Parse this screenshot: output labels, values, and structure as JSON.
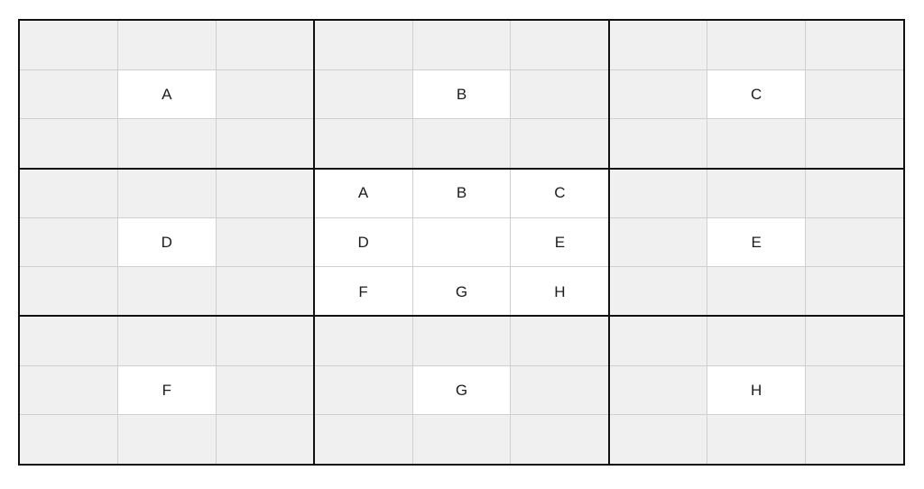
{
  "board": {
    "rows": 9,
    "cols": 9,
    "block_rows": 3,
    "block_cols": 3,
    "colors": {
      "page_bg": "#ffffff",
      "cell_default": "#f0f0f0",
      "cell_highlight": "#ffffff",
      "grid_line": "#cfcfcf",
      "block_line": "#111111",
      "label_text": "#1c1c1c"
    },
    "cells": [
      [
        "",
        "",
        "",
        "",
        "",
        "",
        "",
        "",
        ""
      ],
      [
        "",
        "A",
        "",
        "",
        "B",
        "",
        "",
        "C",
        ""
      ],
      [
        "",
        "",
        "",
        "",
        "",
        "",
        "",
        "",
        ""
      ],
      [
        "",
        "",
        "",
        "A",
        "B",
        "C",
        "",
        "",
        ""
      ],
      [
        "",
        "D",
        "",
        "D",
        "",
        "E",
        "",
        "E",
        ""
      ],
      [
        "",
        "",
        "",
        "F",
        "G",
        "H",
        "",
        "",
        ""
      ],
      [
        "",
        "",
        "",
        "",
        "",
        "",
        "",
        "",
        ""
      ],
      [
        "",
        "F",
        "",
        "",
        "G",
        "",
        "",
        "H",
        ""
      ],
      [
        "",
        "",
        "",
        "",
        "",
        "",
        "",
        "",
        ""
      ]
    ],
    "white_cells": [
      "1,1",
      "1,4",
      "1,7",
      "3,3",
      "3,4",
      "3,5",
      "4,1",
      "4,3",
      "4,4",
      "4,5",
      "4,7",
      "5,3",
      "5,4",
      "5,5",
      "7,1",
      "7,4",
      "7,7"
    ]
  }
}
